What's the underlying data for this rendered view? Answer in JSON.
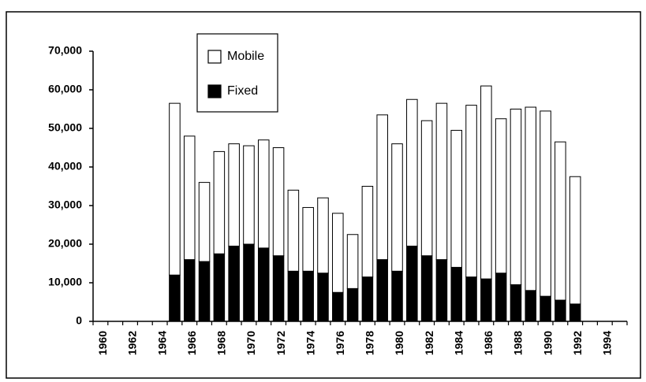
{
  "chart_data": {
    "type": "stacked_bar",
    "categories": [
      "1960",
      null,
      "1962",
      null,
      "1964",
      null,
      "1966",
      null,
      "1968",
      null,
      "1970",
      null,
      "1972",
      null,
      "1974",
      null,
      "1976",
      null,
      "1978",
      null,
      "1980",
      null,
      "1982",
      null,
      "1984",
      null,
      "1986",
      null,
      "1988",
      null,
      "1990",
      null,
      "1992",
      null,
      "1994",
      null
    ],
    "series": [
      {
        "name": "Fixed",
        "color": "#000000",
        "values": [
          null,
          null,
          null,
          null,
          null,
          12000,
          16000,
          15500,
          17500,
          19500,
          20000,
          19000,
          17000,
          13000,
          13000,
          12500,
          7500,
          8500,
          11500,
          16000,
          13000,
          19500,
          17000,
          16000,
          14000,
          11500,
          11000,
          12500,
          9500,
          8000,
          6500,
          5500,
          4500,
          null,
          null,
          null
        ]
      },
      {
        "name": "Mobile",
        "color": "#ffffff",
        "values": [
          null,
          null,
          null,
          null,
          null,
          44500,
          32000,
          20500,
          26500,
          26500,
          25500,
          28000,
          28000,
          21000,
          16500,
          19500,
          20500,
          14000,
          23500,
          37500,
          33000,
          38000,
          35000,
          40500,
          35500,
          44500,
          50000,
          40000,
          45500,
          47500,
          48000,
          41000,
          33000,
          null,
          null,
          null
        ]
      }
    ],
    "ylim": [
      0,
      70000
    ],
    "yticks": [
      0,
      {
        "value": 10000,
        "label": "10,000"
      },
      {
        "value": 20000,
        "label": "20,000"
      },
      {
        "value": 30000,
        "label": "30,000"
      },
      {
        "value": 40000,
        "label": "40,000"
      },
      {
        "value": 50000,
        "label": "50,000"
      },
      {
        "value": 60000,
        "label": "60,000"
      },
      {
        "value": 70000,
        "label": "70,000"
      }
    ],
    "legend": "top-left"
  }
}
